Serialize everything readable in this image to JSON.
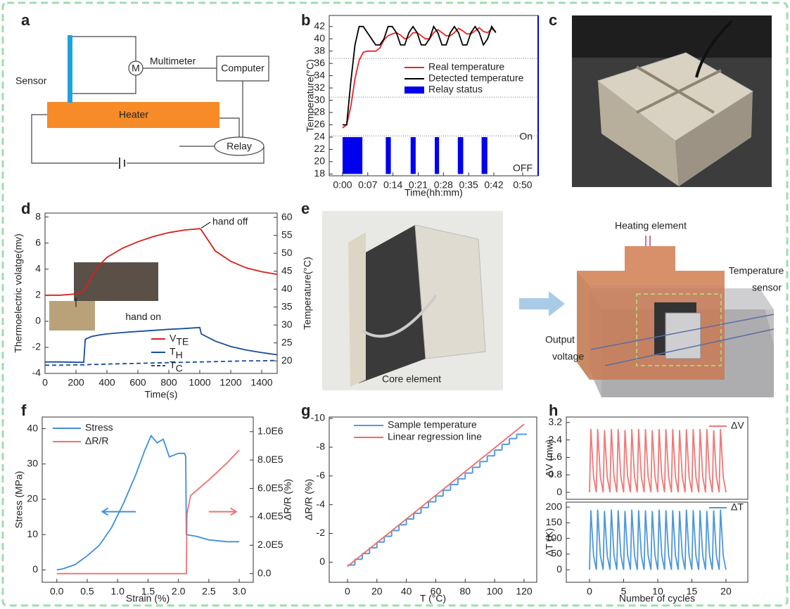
{
  "panel_labels": [
    "a",
    "b",
    "c",
    "d",
    "e",
    "f",
    "g",
    "h"
  ],
  "diagram_a": {
    "sensor": "Sensor",
    "multimeter": "Multimeter",
    "meter": "M",
    "computer": "Computer",
    "heater": "Heater",
    "relay": "Relay"
  },
  "photo_e": {
    "caption": "Core element"
  },
  "schematic_e": {
    "heating": "Heating element",
    "temperature": "Temperature",
    "sensor": "sensor",
    "output": "Output",
    "voltage": "voltage"
  },
  "chart_data": [
    {
      "type": "line",
      "xlabel": "Time(hh:mm)",
      "ylabel": "Temperature(°C)",
      "xlim": [
        -3.7,
        54.3
      ],
      "ylim": [
        17.7,
        43.8
      ],
      "xticks": [
        {
          "value": 0,
          "label": "0:00"
        },
        {
          "value": 7,
          "label": "0:07"
        },
        {
          "value": 14,
          "label": "0:14"
        },
        {
          "value": 21,
          "label": "0:21"
        },
        {
          "value": 28,
          "label": "0:28"
        },
        {
          "value": 35,
          "label": "0:35"
        },
        {
          "value": 42,
          "label": "0:42"
        },
        {
          "value": 50,
          "label": "0:50"
        }
      ],
      "yticks": [
        18,
        20,
        22,
        24,
        26,
        28,
        30,
        32,
        34,
        36,
        38,
        40,
        42
      ],
      "ref_lines": [
        36.8,
        30.5,
        24.2
      ],
      "state_labels": [
        "On",
        "OFF"
      ],
      "x": [
        0,
        1.15,
        2.3,
        3.45,
        4.6,
        5.75,
        6.9,
        8.05,
        9.2,
        10.35,
        11.5,
        12.65,
        13.8,
        14.95,
        16.1,
        17.25,
        18.4,
        19.55,
        20.7,
        21.85,
        23,
        24.15,
        25.3,
        26.45,
        27.6,
        28.75,
        29.9,
        31.05,
        32.2,
        33.35,
        34.5,
        35.65,
        36.8,
        37.95,
        39.1,
        40.25,
        41.4,
        42.55
      ],
      "series": [
        {
          "name": "Real temperature",
          "color": "#e8262a",
          "values": [
            25.5,
            26,
            29,
            33.5,
            36.5,
            37.8,
            38,
            38,
            38,
            38.5,
            39.8,
            40.5,
            40.8,
            41,
            40.6,
            40,
            40.2,
            41,
            41,
            40.5,
            40,
            40,
            41,
            41.5,
            41,
            40.5,
            40.5,
            41,
            41.7,
            41.3,
            40.8,
            40.8,
            41.3,
            41.8,
            41.2,
            41,
            41.6,
            41.2
          ]
        },
        {
          "name": "Detected temperature",
          "color": "#000000",
          "values": [
            26,
            26,
            33,
            39,
            42,
            42,
            41,
            40,
            39,
            39,
            40,
            42,
            42,
            41,
            39,
            39,
            41,
            42,
            41,
            39,
            39,
            40,
            42,
            41,
            39,
            39,
            41,
            42,
            41,
            39,
            39,
            41,
            42,
            41,
            39,
            40,
            42,
            41
          ]
        }
      ],
      "spans": {
        "name": "Relay status",
        "color": "#0000ee",
        "range": [
          18,
          24
        ],
        "intervals": [
          [
            0,
            5.5
          ],
          [
            12,
            13.4
          ],
          [
            18.9,
            20.3
          ],
          [
            25.6,
            26.8
          ],
          [
            32,
            33.5
          ],
          [
            38.6,
            40.2
          ]
        ]
      }
    },
    {
      "type": "line",
      "xlabel": "Time(s)",
      "ylabel": "Thermoelectric volatge(mv)",
      "y2label": "Temperature(°C)",
      "ycolor": "#d8201c",
      "y2color": "#1a3f99",
      "xlim": [
        0,
        1500
      ],
      "ylim": [
        -4,
        8.3
      ],
      "y2lim": [
        16.5,
        61.2
      ],
      "xticks": [
        0,
        200,
        400,
        600,
        800,
        1000,
        1200,
        1400
      ],
      "yticks": [
        -4,
        -2,
        0,
        2,
        4,
        6,
        8
      ],
      "y2ticks": [
        20,
        25,
        30,
        35,
        40,
        45,
        50,
        55,
        60
      ],
      "annotations": [
        "hand off",
        "hand on"
      ],
      "x": [
        0,
        100,
        200,
        250,
        260,
        300,
        350,
        400,
        500,
        600,
        700,
        800,
        900,
        1000,
        1010,
        1100,
        1200,
        1300,
        1400,
        1500
      ],
      "series": [
        {
          "name": "V",
          "sub": "TE",
          "color": "#d8201c",
          "values": [
            2,
            2,
            2.1,
            2.3,
            2.5,
            3.4,
            4.3,
            4.9,
            5.6,
            6.1,
            6.5,
            6.8,
            7,
            7.1,
            7,
            5.4,
            4.6,
            4.1,
            3.8,
            3.6
          ]
        },
        {
          "name": "T",
          "sub": "H",
          "color": "#1a4d99",
          "axis": "y2",
          "values": [
            19.7,
            19.7,
            19.6,
            19.6,
            26,
            26.8,
            27.2,
            27.5,
            27.9,
            28.2,
            28.5,
            28.8,
            29,
            29.3,
            27.5,
            25.5,
            24,
            23,
            22.3,
            21.7
          ]
        },
        {
          "name": "T",
          "sub": "C",
          "color": "#1a4d99",
          "axis": "y2",
          "dash": true,
          "values": [
            18.8,
            18.8,
            18.9,
            18.9,
            18.9,
            19,
            19,
            19.1,
            19.2,
            19.3,
            19.4,
            19.5,
            19.6,
            19.7,
            19.7,
            19.8,
            19.9,
            20,
            20,
            20.1
          ]
        }
      ]
    },
    {
      "type": "line",
      "xlabel": "Strain (%)",
      "ylabel": "Stress (MPa)",
      "y2label": "ΔR/R (%)",
      "xlim": [
        -0.24,
        3.23
      ],
      "ylim": [
        -3.5,
        43.3
      ],
      "y2lim": [
        -61000,
        1103000
      ],
      "xticks": [
        {
          "value": 0,
          "label": "0.0"
        },
        0.5,
        {
          "value": 1,
          "label": "1.0"
        },
        1.5,
        {
          "value": 2,
          "label": "2.0"
        },
        2.5,
        {
          "value": 3,
          "label": "3.0"
        }
      ],
      "yticks": [
        0,
        10,
        20,
        30,
        40
      ],
      "y2ticks": [
        {
          "value": 0,
          "label": "0.0"
        },
        {
          "value": 200000,
          "label": "2.0E5"
        },
        {
          "value": 400000,
          "label": "4.0E5"
        },
        {
          "value": 600000,
          "label": "6.0E5"
        },
        {
          "value": 800000,
          "label": "8.0E5"
        },
        {
          "value": 1000000,
          "label": "1.0E6"
        }
      ],
      "series": [
        {
          "name": "Stress",
          "color": "#3f8fd8",
          "x": [
            0,
            0.1,
            0.3,
            0.5,
            0.7,
            0.9,
            1.1,
            1.3,
            1.45,
            1.55,
            1.65,
            1.75,
            1.85,
            2,
            2.1,
            2.12,
            2.13,
            2.3,
            2.5,
            2.8,
            3
          ],
          "values": [
            0,
            0.3,
            1.5,
            4,
            7,
            12,
            19,
            27,
            34,
            38,
            36,
            37,
            32,
            33,
            33,
            32,
            10,
            9.5,
            8.5,
            8,
            8
          ]
        },
        {
          "name": "ΔR/R",
          "color": "#f07070",
          "axis": "y2",
          "x": [
            0,
            2.13,
            2.14,
            2.2,
            2.5,
            2.8,
            3
          ],
          "values": [
            0,
            0,
            420000,
            550000,
            660000,
            780000,
            870000
          ]
        }
      ]
    },
    {
      "type": "line",
      "xlabel": "T (°C)",
      "ylabel": "ΔR/R (%)",
      "xlim": [
        -12.4,
        128.6
      ],
      "ylim": [
        1.4,
        -10.1
      ],
      "xticks": [
        0,
        20,
        40,
        60,
        80,
        100,
        120
      ],
      "yticks": [
        0,
        -2,
        -4,
        -6,
        -8,
        -10
      ],
      "series": [
        {
          "name": "Sample temperature",
          "color": "#4f9be0",
          "step": true,
          "x": [
            0,
            5,
            10,
            15,
            20,
            25,
            30,
            35,
            40,
            45,
            50,
            55,
            60,
            65,
            70,
            75,
            80,
            85,
            90,
            95,
            100,
            105,
            110,
            115,
            120
          ],
          "values": [
            0.2,
            -0.2,
            -0.6,
            -1,
            -1.4,
            -1.8,
            -2.2,
            -2.6,
            -3,
            -3.4,
            -3.8,
            -4.2,
            -4.6,
            -5,
            -5.4,
            -5.8,
            -6.2,
            -6.6,
            -7,
            -7.4,
            -7.8,
            -8.2,
            -8.6,
            -8.9,
            -8.9
          ]
        },
        {
          "name": "Linear regression line",
          "color": "#f06a6a",
          "x": [
            0,
            120
          ],
          "values": [
            0.3,
            -9.6
          ]
        }
      ]
    },
    {
      "type": "line",
      "ylabel": "ΔV (mw)",
      "xlim": [
        -3.4,
        23.2
      ],
      "ylim": [
        -0.32,
        3.45
      ],
      "yticks": [
        0,
        0.8,
        1.6,
        2.4,
        3.2
      ],
      "x": [
        0,
        0.2,
        0.6,
        1,
        1.2,
        1.6,
        2,
        2.2,
        2.6,
        3,
        3.2,
        3.6,
        4,
        4.2,
        4.6,
        5,
        5.2,
        5.6,
        6,
        6.2,
        6.6,
        7,
        7.2,
        7.6,
        8,
        8.2,
        8.6,
        9,
        9.2,
        9.6,
        10,
        10.2,
        10.6,
        11,
        11.2,
        11.6,
        12,
        12.2,
        12.6,
        13,
        13.2,
        13.6,
        14,
        14.2,
        14.6,
        15,
        15.2,
        15.6,
        16,
        16.2,
        16.6,
        17,
        17.2,
        17.6,
        18,
        18.2,
        18.6,
        19,
        19.2,
        19.6,
        20
      ],
      "series": [
        {
          "name": "ΔV",
          "color": "#f07878",
          "values": [
            0,
            2.9,
            0.7,
            0,
            2.9,
            0.7,
            0,
            2.85,
            0.7,
            0,
            2.9,
            0.7,
            0,
            2.9,
            0.7,
            0,
            2.85,
            0.7,
            0,
            2.9,
            0.7,
            0,
            2.9,
            0.7,
            0,
            2.9,
            0.7,
            0,
            2.85,
            0.7,
            0,
            2.9,
            0.7,
            0,
            2.9,
            0.7,
            0,
            2.9,
            0.7,
            0,
            2.85,
            0.7,
            0,
            2.9,
            0.7,
            0,
            2.9,
            0.7,
            0,
            2.9,
            0.7,
            0,
            2.9,
            0.7,
            0,
            2.85,
            0.7,
            0,
            2.9,
            0.7,
            0
          ]
        }
      ]
    },
    {
      "type": "line",
      "xlabel": "Number of cycles",
      "ylabel": "ΔT (K)",
      "xlim": [
        -3.4,
        23.2
      ],
      "ylim": [
        -40,
        216
      ],
      "xticks": [
        0,
        5,
        10,
        15,
        20
      ],
      "yticks": [
        0,
        50,
        100,
        150,
        200
      ],
      "x": [
        0,
        0.2,
        0.6,
        1,
        1.2,
        1.6,
        2,
        2.2,
        2.6,
        3,
        3.2,
        3.6,
        4,
        4.2,
        4.6,
        5,
        5.2,
        5.6,
        6,
        6.2,
        6.6,
        7,
        7.2,
        7.6,
        8,
        8.2,
        8.6,
        9,
        9.2,
        9.6,
        10,
        10.2,
        10.6,
        11,
        11.2,
        11.6,
        12,
        12.2,
        12.6,
        13,
        13.2,
        13.6,
        14,
        14.2,
        14.6,
        15,
        15.2,
        15.6,
        16,
        16.2,
        16.6,
        17,
        17.2,
        17.6,
        18,
        18.2,
        18.6,
        19,
        19.2,
        19.6,
        20
      ],
      "series": [
        {
          "name": "ΔT",
          "color": "#4e96dc",
          "values": [
            0,
            190,
            45,
            0,
            192,
            45,
            0,
            188,
            45,
            0,
            192,
            45,
            0,
            190,
            45,
            0,
            188,
            45,
            0,
            192,
            45,
            0,
            190,
            45,
            0,
            190,
            45,
            0,
            188,
            45,
            0,
            192,
            45,
            0,
            190,
            45,
            0,
            190,
            45,
            0,
            188,
            45,
            0,
            192,
            45,
            0,
            190,
            45,
            0,
            190,
            45,
            0,
            188,
            45,
            0,
            190,
            45,
            0,
            192,
            45,
            0
          ]
        }
      ]
    }
  ]
}
